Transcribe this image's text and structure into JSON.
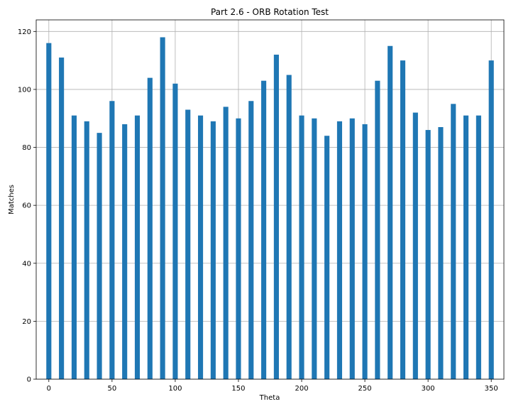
{
  "chart_data": {
    "type": "bar",
    "title": "Part 2.6 - ORB Rotation Test",
    "xlabel": "Theta",
    "ylabel": "Matches",
    "x": [
      0,
      10,
      20,
      30,
      40,
      50,
      60,
      70,
      80,
      90,
      100,
      110,
      120,
      130,
      140,
      150,
      160,
      170,
      180,
      190,
      200,
      210,
      220,
      230,
      240,
      250,
      260,
      270,
      280,
      290,
      300,
      310,
      320,
      330,
      340,
      350
    ],
    "values": [
      116,
      111,
      91,
      89,
      85,
      96,
      88,
      91,
      104,
      118,
      102,
      93,
      91,
      89,
      94,
      90,
      96,
      103,
      112,
      105,
      91,
      90,
      84,
      89,
      90,
      88,
      103,
      115,
      110,
      92,
      86,
      87,
      95,
      91,
      91,
      110
    ],
    "xlim": [
      -10,
      360
    ],
    "ylim": [
      0,
      124
    ],
    "xticks": [
      0,
      50,
      100,
      150,
      200,
      250,
      300,
      350
    ],
    "yticks": [
      0,
      20,
      40,
      60,
      80,
      100,
      120
    ],
    "grid": true,
    "bar_color": "#1f77b4"
  }
}
